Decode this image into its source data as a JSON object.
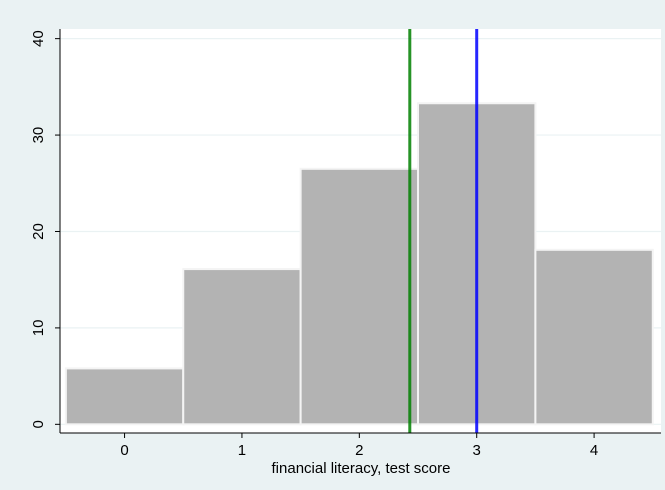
{
  "chart_data": {
    "type": "bar",
    "title": "",
    "xlabel": "financial literacy, test score",
    "ylabel": "",
    "categories": [
      "0",
      "1",
      "2",
      "3",
      "4"
    ],
    "x": [
      0,
      1,
      2,
      3,
      4
    ],
    "values": [
      5.8,
      16.1,
      26.5,
      33.3,
      18.1
    ],
    "bin_width": 1,
    "xlim": [
      -0.55,
      4.57
    ],
    "ylim": [
      -0.9,
      41.0
    ],
    "yticks": [
      0,
      10,
      20,
      30,
      40
    ],
    "xticks": [
      0,
      1,
      2,
      3,
      4
    ],
    "grid": "horizontal",
    "legend": "none",
    "reference_lines": [
      {
        "x": 2.43,
        "color": "#008000"
      },
      {
        "x": 3.0,
        "color": "#0000ff"
      }
    ],
    "colors": {
      "outer_background": "#eaf2f3",
      "plot_background": "#ffffff",
      "bar_fill": "#b3b3b3",
      "bar_edge": "#f4f4f4",
      "gridline": "#eaf2f3"
    }
  }
}
